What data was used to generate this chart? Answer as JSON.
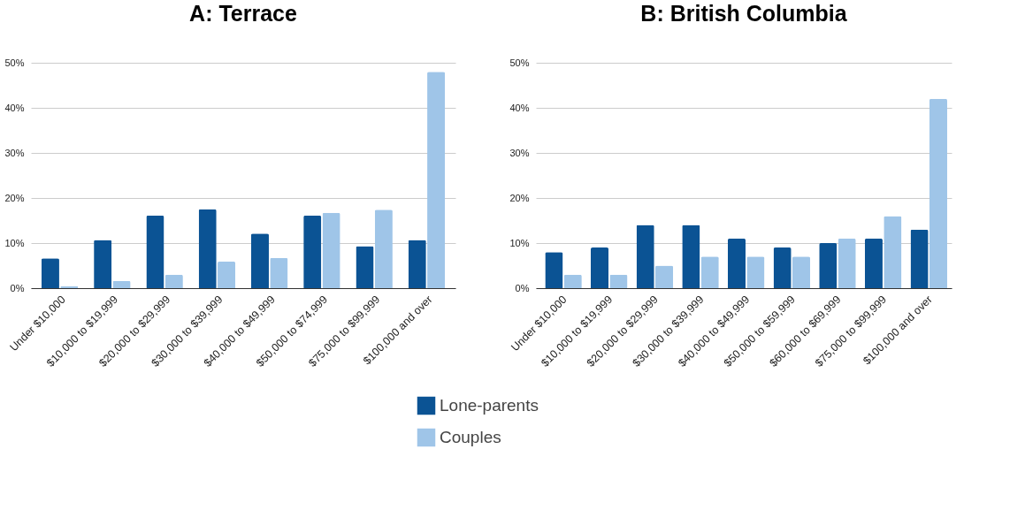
{
  "chart_data": [
    {
      "type": "bar",
      "title": "A: Terrace",
      "categories": [
        "Under $10,000",
        "$10,000 to $19,999",
        "$20,000 to $29,999",
        "$30,000 to $39,999",
        "$40,000 to $49,999",
        "$50,000 to $74,999",
        "$75,000 to $99,999",
        "$100,000 and over"
      ],
      "series": [
        {
          "name": "Lone-parents",
          "color": "#0b5394",
          "values": [
            6.6,
            10.7,
            16.1,
            17.5,
            12.1,
            16.1,
            9.3,
            10.7
          ]
        },
        {
          "name": "Couples",
          "color": "#9fc5e8",
          "values": [
            0.4,
            1.6,
            3.0,
            5.9,
            6.7,
            16.7,
            17.4,
            48
          ]
        }
      ],
      "ylim": [
        0,
        50
      ],
      "yticks": [
        {
          "value": 0,
          "label": "0%"
        },
        {
          "value": 10,
          "label": "10%"
        },
        {
          "value": 20,
          "label": "20%"
        },
        {
          "value": 30,
          "label": "30%"
        },
        {
          "value": 40,
          "label": "40%"
        },
        {
          "value": 50,
          "label": "50%"
        }
      ],
      "grid": "y",
      "legend": "bottom"
    },
    {
      "type": "bar",
      "title": "B: British Columbia",
      "categories": [
        "Under $10,000",
        "$10,000 to $19,999",
        "$20,000 to $29,999",
        "$30,000 to $39,999",
        "$40,000 to $49,999",
        "$50,000 to $59,999",
        "$60,000 to $69,999",
        "$75,000 to $99,999",
        "$100,000 and over"
      ],
      "series": [
        {
          "name": "Lone-parents",
          "color": "#0b5394",
          "values": [
            8,
            9,
            14,
            14,
            11,
            9,
            10,
            11,
            13
          ]
        },
        {
          "name": "Couples",
          "color": "#9fc5e8",
          "values": [
            3,
            3,
            5,
            7,
            7,
            7,
            11,
            16,
            42
          ]
        }
      ],
      "ylim": [
        0,
        50
      ],
      "yticks": [
        {
          "value": 0,
          "label": "0%"
        },
        {
          "value": 10,
          "label": "10%"
        },
        {
          "value": 20,
          "label": "20%"
        },
        {
          "value": 30,
          "label": "30%"
        },
        {
          "value": 40,
          "label": "40%"
        },
        {
          "value": 50,
          "label": "50%"
        }
      ],
      "grid": "y",
      "legend": "bottom"
    }
  ]
}
